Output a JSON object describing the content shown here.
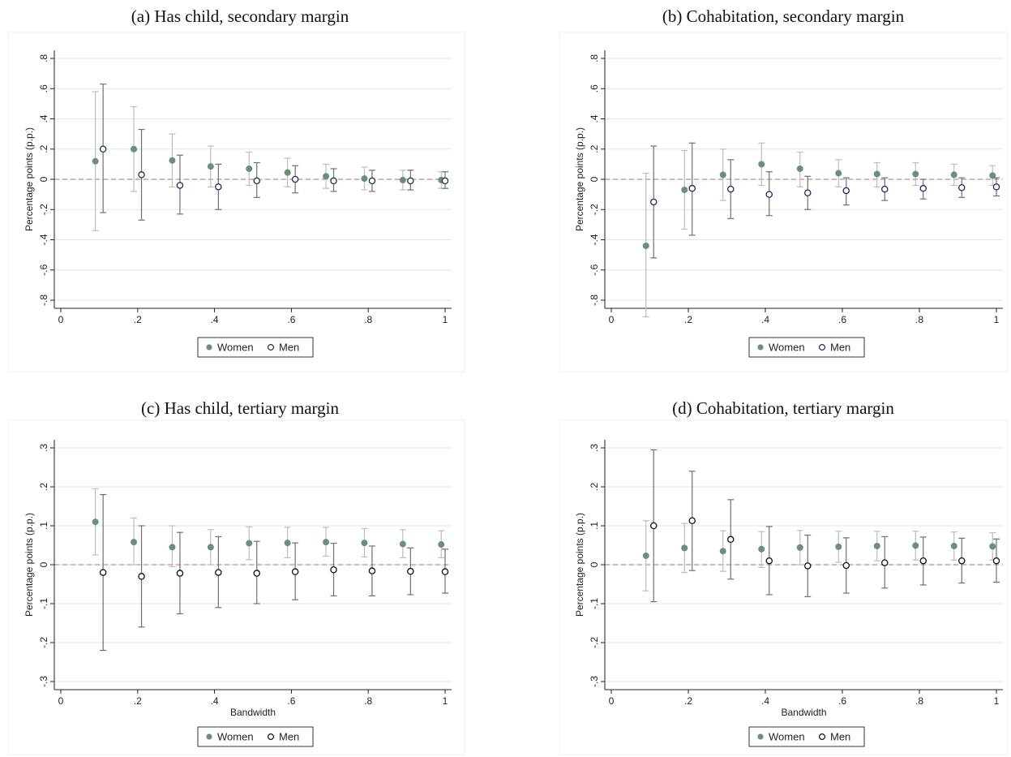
{
  "panel_titles": {
    "a": "(a) Has child, secondary margin",
    "b": "(b) Cohabitation, secondary margin",
    "c": "(c) Has child, tertiary margin",
    "d": "(d) Cohabitation, tertiary margin"
  },
  "colors": {
    "women_marker": "#6a8f7f",
    "women_ci": "#bdbdbd",
    "men_marker_stroke_secondary": "#1a2e5a",
    "men_marker_stroke_tertiary": "#111111",
    "men_ci": "#707070",
    "zero_line": "#c0898f",
    "grid": "#d9e9ee",
    "axis": "#222222"
  },
  "chart_data": [
    {
      "id": "a",
      "type": "scatter",
      "title": "(a) Has child, secondary margin",
      "xlabel": "",
      "ylabel": "Percentage points (p.p.)",
      "xlim": [
        0,
        1
      ],
      "ylim": [
        -0.8,
        0.8
      ],
      "x_ticks": [
        0,
        0.2,
        0.4,
        0.6,
        0.8,
        1
      ],
      "x_tick_labels": [
        "0",
        ".2",
        ".4",
        ".6",
        ".8",
        "1"
      ],
      "y_ticks": [
        -0.8,
        -0.6,
        -0.4,
        -0.2,
        0,
        0.2,
        0.4,
        0.6,
        0.8
      ],
      "y_tick_labels": [
        "-.8",
        "-.6",
        "-.4",
        "-.2",
        "0",
        ".2",
        ".4",
        ".6",
        ".8"
      ],
      "grid": true,
      "legend": "bottom",
      "legend_labels": [
        "Women",
        "Men"
      ],
      "series": [
        {
          "name": "Women",
          "x": [
            0.09,
            0.19,
            0.29,
            0.39,
            0.49,
            0.59,
            0.69,
            0.79,
            0.89,
            0.99
          ],
          "y": [
            0.12,
            0.2,
            0.125,
            0.085,
            0.07,
            0.045,
            0.02,
            0.005,
            -0.005,
            -0.005
          ],
          "lo": [
            -0.34,
            -0.08,
            -0.05,
            -0.05,
            -0.04,
            -0.05,
            -0.06,
            -0.07,
            -0.07,
            -0.06
          ],
          "hi": [
            0.58,
            0.48,
            0.3,
            0.22,
            0.18,
            0.14,
            0.1,
            0.08,
            0.06,
            0.05
          ]
        },
        {
          "name": "Men",
          "x": [
            0.11,
            0.21,
            0.31,
            0.41,
            0.51,
            0.61,
            0.71,
            0.81,
            0.91,
            1.0
          ],
          "y": [
            0.2,
            0.03,
            -0.04,
            -0.05,
            -0.01,
            0.0,
            -0.01,
            -0.01,
            -0.01,
            -0.01
          ],
          "lo": [
            -0.22,
            -0.27,
            -0.23,
            -0.2,
            -0.12,
            -0.09,
            -0.08,
            -0.08,
            -0.07,
            -0.06
          ],
          "hi": [
            0.63,
            0.33,
            0.16,
            0.1,
            0.11,
            0.09,
            0.07,
            0.06,
            0.06,
            0.05
          ]
        }
      ]
    },
    {
      "id": "b",
      "type": "scatter",
      "title": "(b) Cohabitation, secondary margin",
      "xlabel": "",
      "ylabel": "Percentage points (p.p.)",
      "xlim": [
        0,
        1
      ],
      "ylim": [
        -0.8,
        0.8
      ],
      "x_ticks": [
        0,
        0.2,
        0.4,
        0.6,
        0.8,
        1
      ],
      "x_tick_labels": [
        "0",
        ".2",
        ".4",
        ".6",
        ".8",
        "1"
      ],
      "y_ticks": [
        -0.8,
        -0.6,
        -0.4,
        -0.2,
        0,
        0.2,
        0.4,
        0.6,
        0.8
      ],
      "y_tick_labels": [
        "-.8",
        "-.6",
        "-.4",
        "-.2",
        "0",
        ".2",
        ".4",
        ".6",
        ".8"
      ],
      "grid": true,
      "legend": "bottom",
      "legend_labels": [
        "Women",
        "Men"
      ],
      "series": [
        {
          "name": "Women",
          "x": [
            0.09,
            0.19,
            0.29,
            0.39,
            0.49,
            0.59,
            0.69,
            0.79,
            0.89,
            0.99
          ],
          "y": [
            -0.44,
            -0.07,
            0.03,
            0.1,
            0.07,
            0.04,
            0.035,
            0.035,
            0.03,
            0.025
          ],
          "lo": [
            -0.91,
            -0.33,
            -0.14,
            -0.04,
            -0.05,
            -0.05,
            -0.05,
            -0.04,
            -0.04,
            -0.04
          ],
          "hi": [
            0.04,
            0.19,
            0.2,
            0.24,
            0.18,
            0.13,
            0.11,
            0.11,
            0.1,
            0.09
          ]
        },
        {
          "name": "Men",
          "x": [
            0.11,
            0.21,
            0.31,
            0.41,
            0.51,
            0.61,
            0.71,
            0.81,
            0.91,
            1.0
          ],
          "y": [
            -0.15,
            -0.06,
            -0.065,
            -0.1,
            -0.09,
            -0.075,
            -0.065,
            -0.06,
            -0.055,
            -0.05
          ],
          "lo": [
            -0.52,
            -0.37,
            -0.26,
            -0.24,
            -0.2,
            -0.17,
            -0.14,
            -0.13,
            -0.12,
            -0.11
          ],
          "hi": [
            0.22,
            0.24,
            0.13,
            0.05,
            0.02,
            0.01,
            0.01,
            0.0,
            0.01,
            0.01
          ]
        }
      ]
    },
    {
      "id": "c",
      "type": "scatter",
      "title": "(c) Has child, tertiary margin",
      "xlabel": "Bandwidth",
      "ylabel": "Percentage points (p.p.)",
      "xlim": [
        0,
        1
      ],
      "ylim": [
        -0.3,
        0.3
      ],
      "x_ticks": [
        0,
        0.2,
        0.4,
        0.6,
        0.8,
        1
      ],
      "x_tick_labels": [
        "0",
        ".2",
        ".4",
        ".6",
        ".8",
        "1"
      ],
      "y_ticks": [
        -0.3,
        -0.2,
        -0.1,
        0,
        0.1,
        0.2,
        0.3
      ],
      "y_tick_labels": [
        "-.3",
        "-.2",
        "-.1",
        "0",
        ".1",
        ".2",
        ".3"
      ],
      "grid": true,
      "legend": "bottom",
      "legend_labels": [
        "Women",
        "Men"
      ],
      "series": [
        {
          "name": "Women",
          "x": [
            0.09,
            0.19,
            0.29,
            0.39,
            0.49,
            0.59,
            0.69,
            0.79,
            0.89,
            0.99
          ],
          "y": [
            0.11,
            0.058,
            0.045,
            0.045,
            0.055,
            0.056,
            0.058,
            0.056,
            0.053,
            0.052
          ],
          "lo": [
            0.025,
            0.0,
            -0.005,
            0.0,
            0.013,
            0.018,
            0.022,
            0.02,
            0.018,
            0.018
          ],
          "hi": [
            0.195,
            0.12,
            0.1,
            0.09,
            0.097,
            0.096,
            0.096,
            0.093,
            0.09,
            0.087
          ]
        },
        {
          "name": "Men",
          "x": [
            0.11,
            0.21,
            0.31,
            0.41,
            0.51,
            0.61,
            0.71,
            0.81,
            0.91,
            1.0
          ],
          "y": [
            -0.02,
            -0.03,
            -0.022,
            -0.02,
            -0.022,
            -0.018,
            -0.013,
            -0.016,
            -0.017,
            -0.018
          ],
          "lo": [
            -0.22,
            -0.16,
            -0.126,
            -0.11,
            -0.1,
            -0.09,
            -0.08,
            -0.08,
            -0.077,
            -0.073
          ],
          "hi": [
            0.18,
            0.1,
            0.083,
            0.072,
            0.06,
            0.056,
            0.055,
            0.048,
            0.043,
            0.04
          ]
        }
      ]
    },
    {
      "id": "d",
      "type": "scatter",
      "title": "(d) Cohabitation, tertiary margin",
      "xlabel": "Bandwidth",
      "ylabel": "Percentage points (p.p.)",
      "xlim": [
        0,
        1
      ],
      "ylim": [
        -0.3,
        0.3
      ],
      "x_ticks": [
        0,
        0.2,
        0.4,
        0.6,
        0.8,
        1
      ],
      "x_tick_labels": [
        "0",
        ".2",
        ".4",
        ".6",
        ".8",
        "1"
      ],
      "y_ticks": [
        -0.3,
        -0.2,
        -0.1,
        0,
        0.1,
        0.2,
        0.3
      ],
      "y_tick_labels": [
        "-.3",
        "-.2",
        "-.1",
        "0",
        ".1",
        ".2",
        ".3"
      ],
      "grid": true,
      "legend": "bottom",
      "legend_labels": [
        "Women",
        "Men"
      ],
      "series": [
        {
          "name": "Women",
          "x": [
            0.09,
            0.19,
            0.29,
            0.39,
            0.49,
            0.59,
            0.69,
            0.79,
            0.89,
            0.99
          ],
          "y": [
            0.023,
            0.043,
            0.035,
            0.04,
            0.044,
            0.046,
            0.048,
            0.049,
            0.048,
            0.047
          ],
          "lo": [
            -0.067,
            -0.02,
            -0.017,
            -0.007,
            0.0,
            0.006,
            0.01,
            0.012,
            0.012,
            0.012
          ],
          "hi": [
            0.113,
            0.106,
            0.087,
            0.085,
            0.088,
            0.086,
            0.086,
            0.086,
            0.084,
            0.082
          ]
        },
        {
          "name": "Men",
          "x": [
            0.11,
            0.21,
            0.31,
            0.41,
            0.51,
            0.61,
            0.71,
            0.81,
            0.91,
            1.0
          ],
          "y": [
            0.1,
            0.113,
            0.065,
            0.01,
            -0.003,
            -0.002,
            0.005,
            0.01,
            0.01,
            0.01
          ],
          "lo": [
            -0.095,
            -0.015,
            -0.037,
            -0.077,
            -0.082,
            -0.073,
            -0.06,
            -0.052,
            -0.047,
            -0.045
          ],
          "hi": [
            0.295,
            0.24,
            0.167,
            0.098,
            0.076,
            0.069,
            0.072,
            0.071,
            0.068,
            0.066
          ]
        }
      ]
    }
  ]
}
